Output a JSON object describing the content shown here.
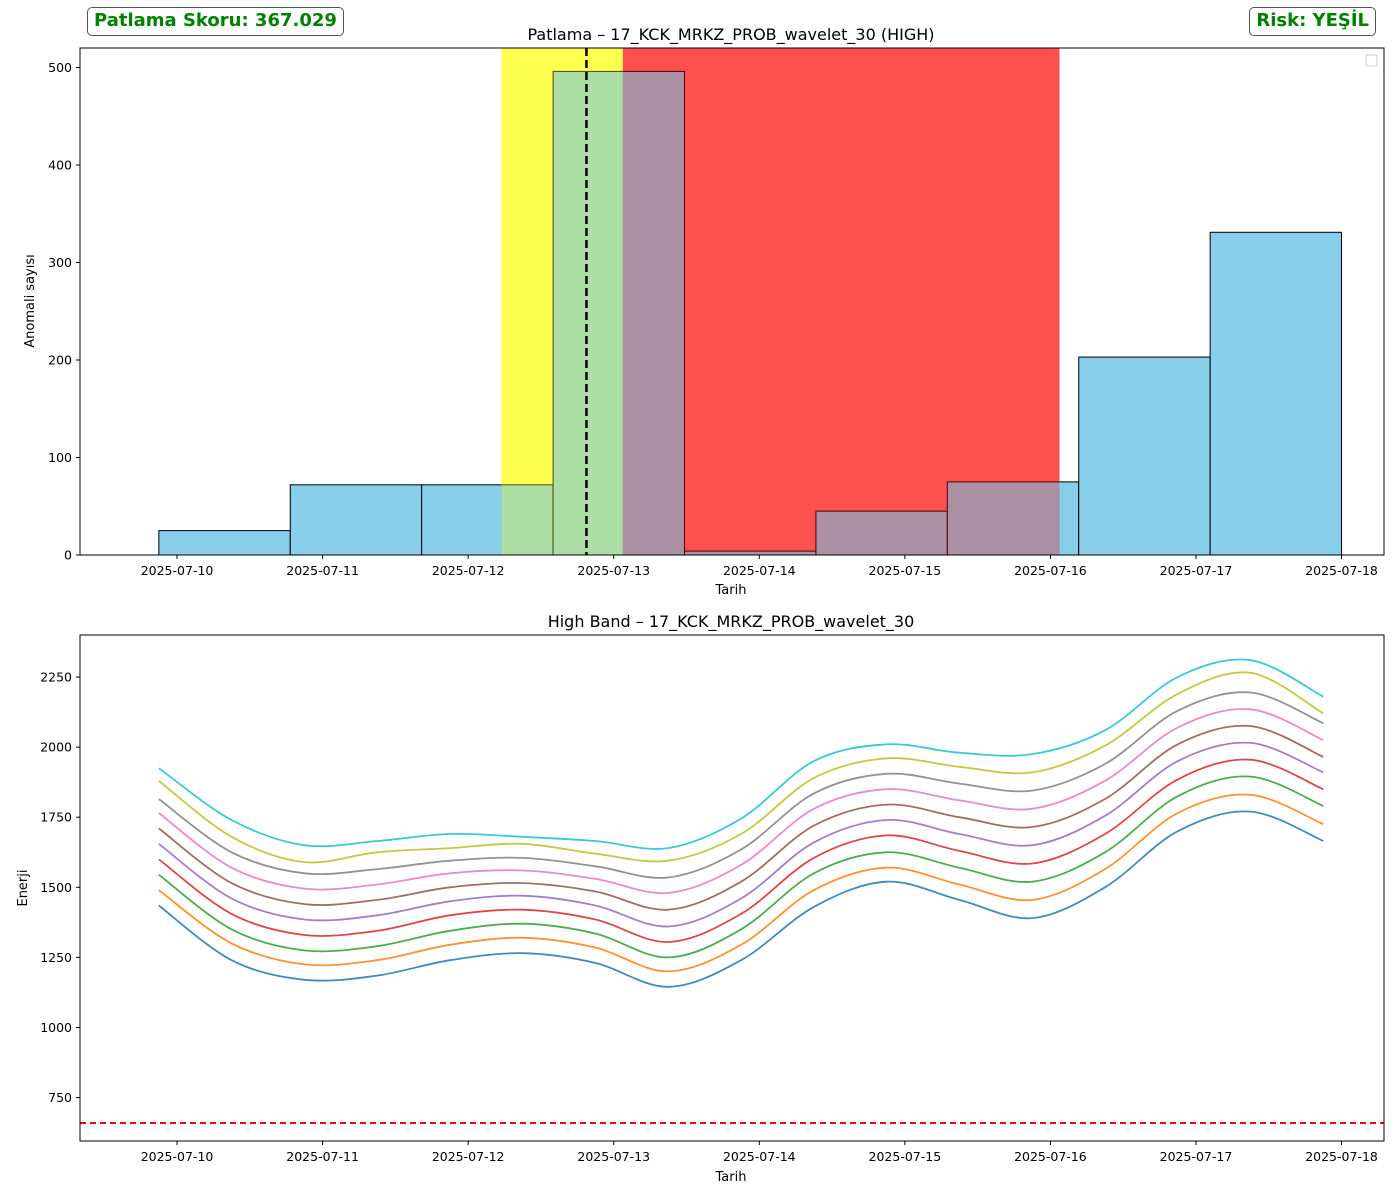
{
  "badges": {
    "score": "Patlama Skoru: 367.029",
    "risk": "Risk: YEŞİL",
    "color": "#008000"
  },
  "chart_data": [
    {
      "type": "bar",
      "title": "Patlama – 17_KCK_MRKZ_PROB_wavelet_30 (HIGH)",
      "xlabel": "Tarih",
      "ylabel": "Anomali sayısı",
      "x_is_date": true,
      "xlim": [
        "2025-07-09T08:00",
        "2025-07-18T07:00"
      ],
      "ylim": [
        0,
        520
      ],
      "yticks": [
        0,
        100,
        200,
        300,
        400,
        500
      ],
      "xticks": [
        "2025-07-10",
        "2025-07-11",
        "2025-07-12",
        "2025-07-13",
        "2025-07-14",
        "2025-07-15",
        "2025-07-16",
        "2025-07-17",
        "2025-07-18"
      ],
      "legend": "top-right (empty)",
      "bins": [
        {
          "start": "2025-07-09T21:00",
          "end": "2025-07-10T18:40",
          "value": 25
        },
        {
          "start": "2025-07-10T18:40",
          "end": "2025-07-11T16:20",
          "value": 72
        },
        {
          "start": "2025-07-11T16:20",
          "end": "2025-07-12T14:00",
          "value": 72
        },
        {
          "start": "2025-07-12T14:00",
          "end": "2025-07-13T11:40",
          "value": 496
        },
        {
          "start": "2025-07-13T11:40",
          "end": "2025-07-14T09:20",
          "value": 4
        },
        {
          "start": "2025-07-14T09:20",
          "end": "2025-07-15T07:00",
          "value": 45
        },
        {
          "start": "2025-07-15T07:00",
          "end": "2025-07-16T04:40",
          "value": 75
        },
        {
          "start": "2025-07-16T04:40",
          "end": "2025-07-17T02:20",
          "value": 203
        },
        {
          "start": "2025-07-17T02:20",
          "end": "2025-07-18T00:00",
          "value": 331
        }
      ],
      "bar_color": "#87ceeb",
      "spans": [
        {
          "start": "2025-07-12T05:30",
          "end": "2025-07-13T01:30",
          "color": "#ffff00"
        },
        {
          "start": "2025-07-13T01:30",
          "end": "2025-07-16T01:30",
          "color": "#ff0000"
        }
      ],
      "vline": {
        "x": "2025-07-12T19:30",
        "style": "dashed",
        "color": "#000000"
      }
    },
    {
      "type": "line",
      "title": "High Band – 17_KCK_MRKZ_PROB_wavelet_30",
      "xlabel": "Tarih",
      "ylabel": "Enerji",
      "x_is_date": true,
      "xlim": [
        "2025-07-09T08:00",
        "2025-07-18T07:00"
      ],
      "ylim": [
        595,
        2400
      ],
      "yticks": [
        750,
        1000,
        1250,
        1500,
        1750,
        2000,
        2250
      ],
      "xticks": [
        "2025-07-10",
        "2025-07-11",
        "2025-07-12",
        "2025-07-13",
        "2025-07-14",
        "2025-07-15",
        "2025-07-16",
        "2025-07-17",
        "2025-07-18"
      ],
      "hline": {
        "y": 595,
        "style": "dashed",
        "color": "#ff0000"
      },
      "x": [
        "2025-07-09T21:00",
        "2025-07-10T09:00",
        "2025-07-10T21:00",
        "2025-07-11T09:00",
        "2025-07-11T21:00",
        "2025-07-12T09:00",
        "2025-07-12T21:00",
        "2025-07-13T09:00",
        "2025-07-13T21:00",
        "2025-07-14T09:00",
        "2025-07-14T21:00",
        "2025-07-15T09:00",
        "2025-07-15T21:00",
        "2025-07-16T09:00",
        "2025-07-16T21:00",
        "2025-07-17T09:00",
        "2025-07-17T21:00"
      ],
      "series": [
        {
          "color": "#1f77b4",
          "values": [
            1435,
            1240,
            1170,
            1185,
            1240,
            1265,
            1230,
            1145,
            1240,
            1430,
            1520,
            1455,
            1390,
            1500,
            1700,
            1770,
            1665
          ]
        },
        {
          "color": "#ff7f0e",
          "values": [
            1490,
            1300,
            1225,
            1240,
            1295,
            1320,
            1285,
            1200,
            1295,
            1490,
            1570,
            1510,
            1455,
            1565,
            1765,
            1830,
            1725
          ]
        },
        {
          "color": "#2ca02c",
          "values": [
            1545,
            1350,
            1275,
            1290,
            1345,
            1370,
            1335,
            1250,
            1350,
            1550,
            1625,
            1570,
            1520,
            1625,
            1825,
            1895,
            1790
          ]
        },
        {
          "color": "#d62728",
          "values": [
            1600,
            1405,
            1330,
            1345,
            1400,
            1420,
            1385,
            1305,
            1405,
            1605,
            1685,
            1630,
            1585,
            1690,
            1885,
            1955,
            1850
          ]
        },
        {
          "color": "#9467bd",
          "values": [
            1655,
            1460,
            1385,
            1400,
            1450,
            1470,
            1435,
            1360,
            1460,
            1660,
            1740,
            1690,
            1650,
            1755,
            1950,
            2015,
            1910
          ]
        },
        {
          "color": "#8c564b",
          "values": [
            1710,
            1515,
            1440,
            1455,
            1500,
            1515,
            1485,
            1420,
            1520,
            1720,
            1795,
            1750,
            1715,
            1815,
            2010,
            2075,
            1965
          ]
        },
        {
          "color": "#e377c2",
          "values": [
            1765,
            1570,
            1495,
            1510,
            1550,
            1560,
            1530,
            1480,
            1580,
            1780,
            1850,
            1810,
            1780,
            1880,
            2070,
            2135,
            2025
          ]
        },
        {
          "color": "#7f7f7f",
          "values": [
            1815,
            1625,
            1550,
            1565,
            1595,
            1605,
            1575,
            1535,
            1635,
            1835,
            1905,
            1870,
            1845,
            1940,
            2130,
            2195,
            2085
          ]
        },
        {
          "color": "#bcbd22",
          "values": [
            1880,
            1680,
            1590,
            1625,
            1640,
            1655,
            1620,
            1595,
            1690,
            1890,
            1960,
            1930,
            1910,
            2005,
            2190,
            2265,
            2120
          ]
        },
        {
          "color": "#17becf",
          "values": [
            1925,
            1740,
            1650,
            1665,
            1690,
            1680,
            1665,
            1640,
            1745,
            1950,
            2010,
            1980,
            1975,
            2060,
            2250,
            2310,
            2180
          ]
        }
      ]
    }
  ]
}
